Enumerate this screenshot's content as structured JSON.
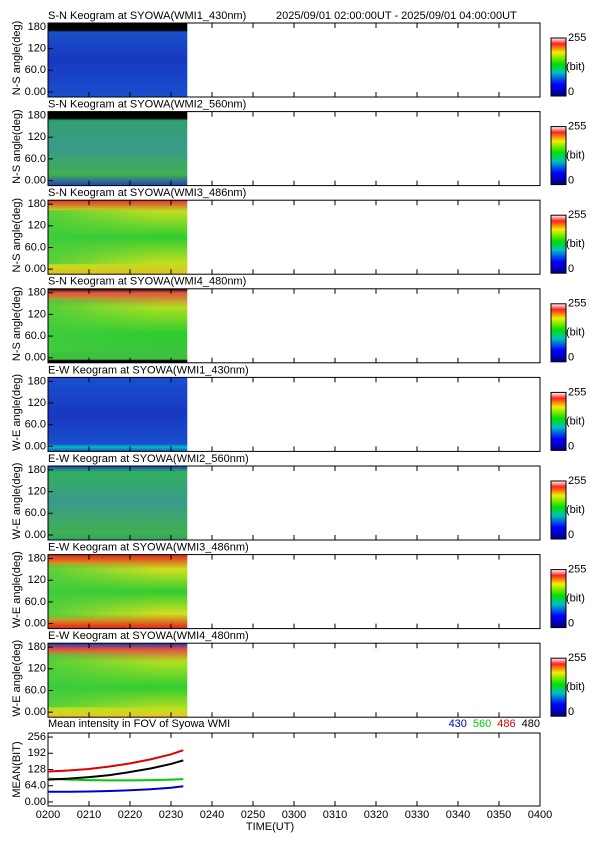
{
  "header": "2025/09/01 02:00:00UT - 2025/09/01 04:00:00UT",
  "keograms": [
    {
      "title": "S-N Keogram at SYOWA(WMI1_430nm)",
      "ylabel": "N-S angle(deg)",
      "ylim": [
        -14,
        191
      ],
      "yticks": [
        {
          "value": 0,
          "label": "0.00"
        },
        {
          "value": 60,
          "label": "60.0"
        },
        120,
        180
      ],
      "colorbar": {
        "min": 0,
        "max": 255,
        "unit": "(bit)"
      }
    },
    {
      "title": "S-N Keogram at SYOWA(WMI2_560nm)",
      "ylabel": "N-S angle(deg)",
      "ylim": [
        -14,
        191
      ],
      "yticks": [
        {
          "value": 0,
          "label": "0.00"
        },
        {
          "value": 60,
          "label": "60.0"
        },
        120,
        180
      ],
      "colorbar": {
        "min": 0,
        "max": 255,
        "unit": "(bit)"
      }
    },
    {
      "title": "S-N Keogram at SYOWA(WMI3_486nm)",
      "ylabel": "N-S angle(deg)",
      "ylim": [
        -14,
        191
      ],
      "yticks": [
        {
          "value": 0,
          "label": "0.00"
        },
        {
          "value": 60,
          "label": "60.0"
        },
        120,
        180
      ],
      "colorbar": {
        "min": 0,
        "max": 255,
        "unit": "(bit)"
      }
    },
    {
      "title": "S-N Keogram at SYOWA(WMI4_480nm)",
      "ylabel": "N-S angle(deg)",
      "ylim": [
        -14,
        191
      ],
      "yticks": [
        {
          "value": 0,
          "label": "0.00"
        },
        {
          "value": 60,
          "label": "60.0"
        },
        120,
        180
      ],
      "colorbar": {
        "min": 0,
        "max": 255,
        "unit": "(bit)"
      }
    },
    {
      "title": "E-W Keogram at SYOWA(WMI1_430nm)",
      "ylabel": "W-E angle(deg)",
      "ylim": [
        -14,
        191
      ],
      "yticks": [
        {
          "value": 0,
          "label": "0.00"
        },
        {
          "value": 60,
          "label": "60.0"
        },
        120,
        180
      ],
      "colorbar": {
        "min": 0,
        "max": 255,
        "unit": "(bit)"
      }
    },
    {
      "title": "E-W Keogram at SYOWA(WMI2_560nm)",
      "ylabel": "W-E angle(deg)",
      "ylim": [
        -14,
        191
      ],
      "yticks": [
        {
          "value": 0,
          "label": "0.00"
        },
        {
          "value": 60,
          "label": "60.0"
        },
        120,
        180
      ],
      "colorbar": {
        "min": 0,
        "max": 255,
        "unit": "(bit)"
      }
    },
    {
      "title": "E-W Keogram at SYOWA(WMI3_486nm)",
      "ylabel": "W-E angle(deg)",
      "ylim": [
        -14,
        191
      ],
      "yticks": [
        {
          "value": 0,
          "label": "0.00"
        },
        {
          "value": 60,
          "label": "60.0"
        },
        120,
        180
      ],
      "colorbar": {
        "min": 0,
        "max": 255,
        "unit": "(bit)"
      }
    },
    {
      "title": "E-W Keogram at SYOWA(WMI4_480nm)",
      "ylabel": "W-E angle(deg)",
      "ylim": [
        -14,
        191
      ],
      "yticks": [
        {
          "value": 0,
          "label": "0.00"
        },
        {
          "value": 60,
          "label": "60.0"
        },
        120,
        180
      ],
      "colorbar": {
        "min": 0,
        "max": 255,
        "unit": "(bit)"
      }
    }
  ],
  "chart_data": {
    "type": "line",
    "title": "Mean intensity in FOV of Syowa WMI",
    "ylabel": "MEAN(BIT)",
    "xlabel": "TIME(UT)",
    "x": [
      0,
      5,
      10,
      15,
      20,
      25,
      30,
      33
    ],
    "xlim": [
      0,
      120
    ],
    "xticks": [
      {
        "value": 0,
        "label": "0200"
      },
      {
        "value": 10,
        "label": "0210"
      },
      {
        "value": 20,
        "label": "0220"
      },
      {
        "value": 30,
        "label": "0230"
      },
      {
        "value": 40,
        "label": "0240"
      },
      {
        "value": 50,
        "label": "0250"
      },
      {
        "value": 60,
        "label": "0300"
      },
      {
        "value": 70,
        "label": "0310"
      },
      {
        "value": 80,
        "label": "0320"
      },
      {
        "value": 90,
        "label": "0330"
      },
      {
        "value": 100,
        "label": "0340"
      },
      {
        "value": 110,
        "label": "0350"
      },
      {
        "value": 120,
        "label": "0400"
      }
    ],
    "ylim": [
      -16,
      272
    ],
    "yticks": [
      {
        "value": 0,
        "label": "0.00"
      },
      {
        "value": 64,
        "label": "64.0"
      },
      128,
      192,
      256
    ],
    "series": [
      {
        "name": "430",
        "color": "#0000cc",
        "values": [
          40,
          40,
          41,
          43,
          46,
          50,
          56,
          62
        ]
      },
      {
        "name": "560",
        "color": "#00cc00",
        "values": [
          92,
          88,
          86,
          85,
          85,
          86,
          88,
          90
        ]
      },
      {
        "name": "486",
        "color": "#dd0000",
        "values": [
          120,
          124,
          130,
          140,
          152,
          168,
          188,
          204
        ]
      },
      {
        "name": "480",
        "color": "#000000",
        "values": [
          88,
          92,
          98,
          106,
          118,
          132,
          150,
          164
        ]
      }
    ]
  }
}
